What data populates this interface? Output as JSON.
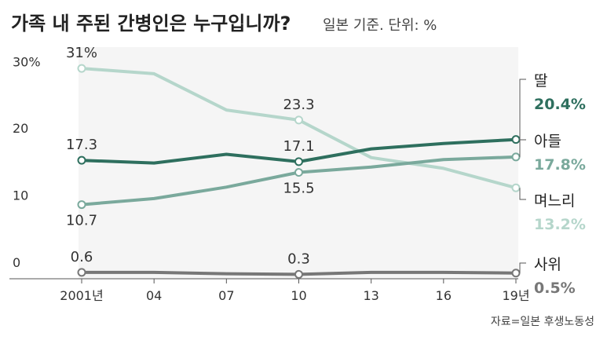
{
  "title": "가족 내 주된 간병인은 누구입니까?",
  "subtitle": "일본 기준. 단위: %",
  "source": "자료=일본 후생노동성",
  "colors": {
    "딸": "#2e6f5e",
    "아들": "#7aa99c",
    "며느리": "#b5d6cb",
    "사위": "#777777",
    "plot_bg": "#f5f5f5"
  },
  "chart_data": {
    "type": "line",
    "x": [
      2001,
      2004,
      2007,
      2010,
      2013,
      2016,
      2019
    ],
    "x_tick_labels": [
      "2001년",
      "04",
      "07",
      "10",
      "13",
      "16",
      "19년"
    ],
    "y_ticks": [
      0,
      10,
      20,
      30
    ],
    "y_tick_labels": [
      "0",
      "10",
      "20",
      "30%"
    ],
    "ylim": [
      0,
      33
    ],
    "grid": false,
    "legend": "right, at line ends",
    "series": [
      {
        "name": "며느리",
        "values": [
          31.0,
          30.2,
          24.8,
          23.3,
          17.7,
          16.1,
          13.2
        ],
        "end_label": "13.2%",
        "point_labels": [
          {
            "index": 0,
            "text": "31%"
          },
          {
            "index": 3,
            "text": "23.3"
          }
        ]
      },
      {
        "name": "딸",
        "values": [
          17.3,
          16.9,
          18.2,
          17.1,
          19.0,
          19.8,
          20.4
        ],
        "end_label": "20.4%",
        "point_labels": [
          {
            "index": 0,
            "text": "17.3"
          },
          {
            "index": 3,
            "text": "17.1"
          }
        ]
      },
      {
        "name": "아들",
        "values": [
          10.7,
          11.6,
          13.3,
          15.5,
          16.3,
          17.4,
          17.8
        ],
        "end_label": "17.8%",
        "point_labels": [
          {
            "index": 0,
            "text": "10.7"
          },
          {
            "index": 3,
            "text": "15.5"
          }
        ]
      },
      {
        "name": "사위",
        "values": [
          0.6,
          0.6,
          0.4,
          0.3,
          0.6,
          0.6,
          0.5
        ],
        "end_label": "0.5%",
        "point_labels": [
          {
            "index": 0,
            "text": "0.6"
          },
          {
            "index": 3,
            "text": "0.3"
          }
        ]
      }
    ]
  }
}
